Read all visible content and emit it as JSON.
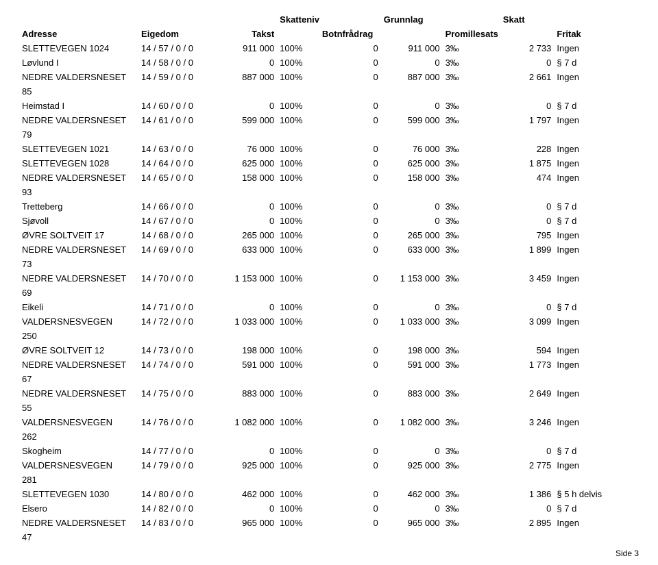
{
  "header1": {
    "skatteniva": "Skattenivå",
    "grunnlag": "Grunnlag",
    "skatt": "Skatt"
  },
  "header2": {
    "adresse": "Adresse",
    "eigedom": "Eigedom",
    "takst": "Takst",
    "botnfradrag": "Botnfrådrag",
    "promillesats": "Promillesats",
    "fritak": "Fritak"
  },
  "rows": [
    {
      "adresse": "SLETTEVEGEN 1024",
      "eigedom": "14 / 57 / 0 / 0",
      "takst": "911 000",
      "niva": "100%",
      "botn": "0",
      "grunnlag": "911 000",
      "promille": "3‰",
      "skatt": "2 733",
      "fritak": "Ingen"
    },
    {
      "adresse": "Løvlund I",
      "eigedom": "14 / 58 / 0 / 0",
      "takst": "0",
      "niva": "100%",
      "botn": "0",
      "grunnlag": "0",
      "promille": "3‰",
      "skatt": "0",
      "fritak": "§ 7 d"
    },
    {
      "adresse": "NEDRE VALDERSNESET 85",
      "eigedom": "14 / 59 / 0 / 0",
      "takst": "887 000",
      "niva": "100%",
      "botn": "0",
      "grunnlag": "887 000",
      "promille": "3‰",
      "skatt": "2 661",
      "fritak": "Ingen"
    },
    {
      "adresse": "Heimstad I",
      "eigedom": "14 / 60 / 0 / 0",
      "takst": "0",
      "niva": "100%",
      "botn": "0",
      "grunnlag": "0",
      "promille": "3‰",
      "skatt": "0",
      "fritak": "§ 7 d"
    },
    {
      "adresse": "NEDRE VALDERSNESET 79",
      "eigedom": "14 / 61 / 0 / 0",
      "takst": "599 000",
      "niva": "100%",
      "botn": "0",
      "grunnlag": "599 000",
      "promille": "3‰",
      "skatt": "1 797",
      "fritak": "Ingen"
    },
    {
      "adresse": "SLETTEVEGEN 1021",
      "eigedom": "14 / 63 / 0 / 0",
      "takst": "76 000",
      "niva": "100%",
      "botn": "0",
      "grunnlag": "76 000",
      "promille": "3‰",
      "skatt": "228",
      "fritak": "Ingen"
    },
    {
      "adresse": "SLETTEVEGEN 1028",
      "eigedom": "14 / 64 / 0 / 0",
      "takst": "625 000",
      "niva": "100%",
      "botn": "0",
      "grunnlag": "625 000",
      "promille": "3‰",
      "skatt": "1 875",
      "fritak": "Ingen"
    },
    {
      "adresse": "NEDRE VALDERSNESET 93",
      "eigedom": "14 / 65 / 0 / 0",
      "takst": "158 000",
      "niva": "100%",
      "botn": "0",
      "grunnlag": "158 000",
      "promille": "3‰",
      "skatt": "474",
      "fritak": "Ingen"
    },
    {
      "adresse": "Tretteberg",
      "eigedom": "14 / 66 / 0 / 0",
      "takst": "0",
      "niva": "100%",
      "botn": "0",
      "grunnlag": "0",
      "promille": "3‰",
      "skatt": "0",
      "fritak": "§ 7 d"
    },
    {
      "adresse": "Sjøvoll",
      "eigedom": "14 / 67 / 0 / 0",
      "takst": "0",
      "niva": "100%",
      "botn": "0",
      "grunnlag": "0",
      "promille": "3‰",
      "skatt": "0",
      "fritak": "§ 7 d"
    },
    {
      "adresse": "ØVRE SOLTVEIT 17",
      "eigedom": "14 / 68 / 0 / 0",
      "takst": "265 000",
      "niva": "100%",
      "botn": "0",
      "grunnlag": "265 000",
      "promille": "3‰",
      "skatt": "795",
      "fritak": "Ingen"
    },
    {
      "adresse": "NEDRE VALDERSNESET 73",
      "eigedom": "14 / 69 / 0 / 0",
      "takst": "633 000",
      "niva": "100%",
      "botn": "0",
      "grunnlag": "633 000",
      "promille": "3‰",
      "skatt": "1 899",
      "fritak": "Ingen"
    },
    {
      "adresse": "NEDRE VALDERSNESET 69",
      "eigedom": "14 / 70 / 0 / 0",
      "takst": "1 153 000",
      "niva": "100%",
      "botn": "0",
      "grunnlag": "1 153 000",
      "promille": "3‰",
      "skatt": "3 459",
      "fritak": "Ingen"
    },
    {
      "adresse": "Eikeli",
      "eigedom": "14 / 71 / 0 / 0",
      "takst": "0",
      "niva": "100%",
      "botn": "0",
      "grunnlag": "0",
      "promille": "3‰",
      "skatt": "0",
      "fritak": "§ 7 d"
    },
    {
      "adresse": "VALDERSNESVEGEN 250",
      "eigedom": "14 / 72 / 0 / 0",
      "takst": "1 033 000",
      "niva": "100%",
      "botn": "0",
      "grunnlag": "1 033 000",
      "promille": "3‰",
      "skatt": "3 099",
      "fritak": "Ingen"
    },
    {
      "adresse": "ØVRE SOLTVEIT 12",
      "eigedom": "14 / 73 / 0 / 0",
      "takst": "198 000",
      "niva": "100%",
      "botn": "0",
      "grunnlag": "198 000",
      "promille": "3‰",
      "skatt": "594",
      "fritak": "Ingen"
    },
    {
      "adresse": "NEDRE VALDERSNESET 67",
      "eigedom": "14 / 74 / 0 / 0",
      "takst": "591 000",
      "niva": "100%",
      "botn": "0",
      "grunnlag": "591 000",
      "promille": "3‰",
      "skatt": "1 773",
      "fritak": "Ingen"
    },
    {
      "adresse": "NEDRE VALDERSNESET 55",
      "eigedom": "14 / 75 / 0 / 0",
      "takst": "883 000",
      "niva": "100%",
      "botn": "0",
      "grunnlag": "883 000",
      "promille": "3‰",
      "skatt": "2 649",
      "fritak": "Ingen"
    },
    {
      "adresse": "VALDERSNESVEGEN 262",
      "eigedom": "14 / 76 / 0 / 0",
      "takst": "1 082 000",
      "niva": "100%",
      "botn": "0",
      "grunnlag": "1 082 000",
      "promille": "3‰",
      "skatt": "3 246",
      "fritak": "Ingen"
    },
    {
      "adresse": "Skogheim",
      "eigedom": "14 / 77 / 0 / 0",
      "takst": "0",
      "niva": "100%",
      "botn": "0",
      "grunnlag": "0",
      "promille": "3‰",
      "skatt": "0",
      "fritak": "§ 7 d"
    },
    {
      "adresse": "VALDERSNESVEGEN 281",
      "eigedom": "14 / 79 / 0 / 0",
      "takst": "925 000",
      "niva": "100%",
      "botn": "0",
      "grunnlag": "925 000",
      "promille": "3‰",
      "skatt": "2 775",
      "fritak": "Ingen"
    },
    {
      "adresse": "SLETTEVEGEN 1030",
      "eigedom": "14 / 80 / 0 / 0",
      "takst": "462 000",
      "niva": "100%",
      "botn": "0",
      "grunnlag": "462 000",
      "promille": "3‰",
      "skatt": "1 386",
      "fritak": "§ 5 h delvis"
    },
    {
      "adresse": "Elsero",
      "eigedom": "14 / 82 / 0 / 0",
      "takst": "0",
      "niva": "100%",
      "botn": "0",
      "grunnlag": "0",
      "promille": "3‰",
      "skatt": "0",
      "fritak": "§ 7 d"
    },
    {
      "adresse": "NEDRE VALDERSNESET 47",
      "eigedom": "14 / 83 / 0 / 0",
      "takst": "965 000",
      "niva": "100%",
      "botn": "0",
      "grunnlag": "965 000",
      "promille": "3‰",
      "skatt": "2 895",
      "fritak": "Ingen"
    }
  ],
  "page": "Side 3"
}
